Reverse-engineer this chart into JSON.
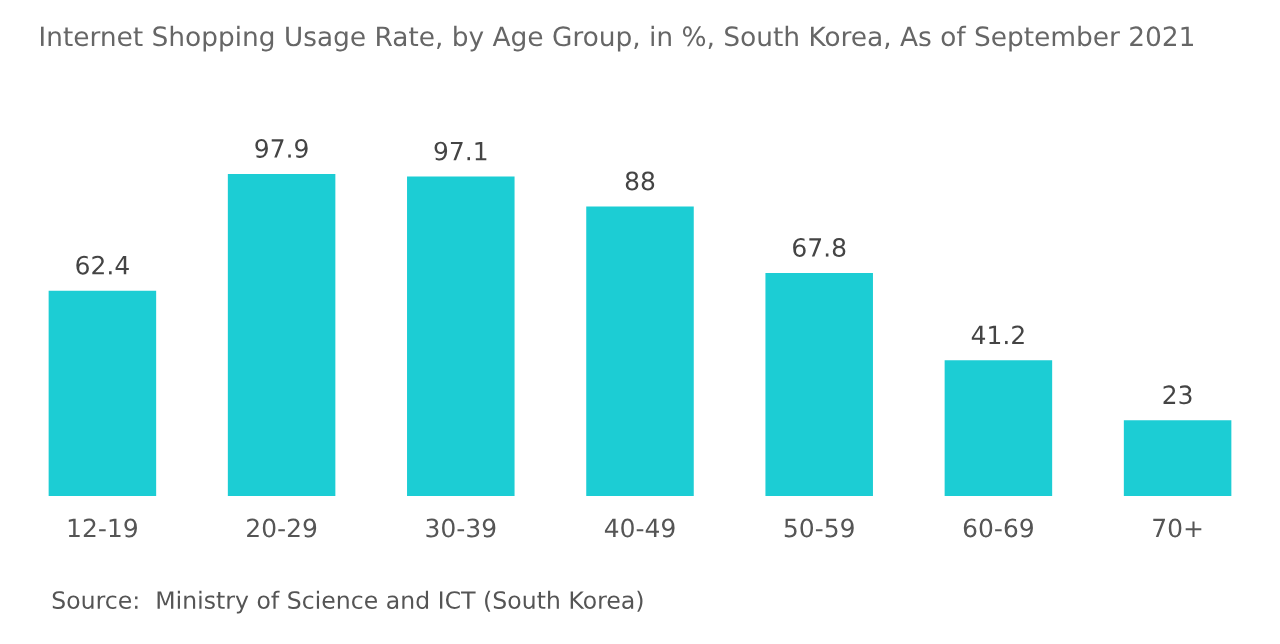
{
  "chart_data": {
    "type": "bar",
    "title": "Internet Shopping Usage Rate, by Age Group, in %, South Korea, As of September 2021",
    "categories": [
      "12-19",
      "20-29",
      "30-39",
      "40-49",
      "50-59",
      "60-69",
      "70+"
    ],
    "values": [
      62.4,
      97.9,
      97.1,
      88,
      67.8,
      41.2,
      23
    ],
    "color": "#1ccdd4",
    "data_labels": true,
    "grid": false,
    "annotations": [
      "Source:  Ministry of Science and ICT (South Korea)"
    ]
  }
}
